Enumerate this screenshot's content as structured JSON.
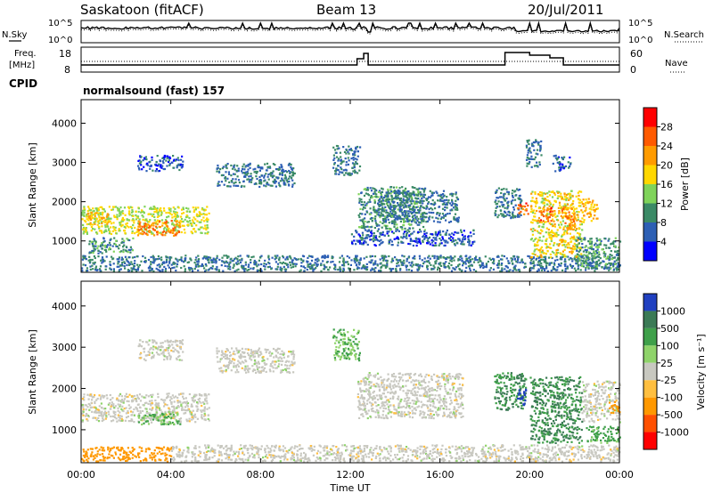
{
  "header": {
    "station": "Saskatoon (fitACF)",
    "beam": "Beam 13",
    "date": "20/Jul/2011"
  },
  "top_panels": {
    "nsky_label": "N.Sky",
    "nsky_ticks": [
      "10^5",
      "10^0"
    ],
    "nsearch_label": "N.Search",
    "nsearch_ticks": [
      "10^5",
      "10^0"
    ],
    "freq_label": "Freq.",
    "freq_unit": "[MHz]",
    "freq_ticks": [
      "18",
      "8"
    ],
    "nave_label": "Nave",
    "nave_ticks": [
      "60",
      "0"
    ],
    "cpid_label": "CPID",
    "cpid_text": "normalsound (fast) 157"
  },
  "colors": {
    "power_scale": [
      "#0000ff",
      "#2d5fb4",
      "#3b8a66",
      "#7fd35a",
      "#ffd700",
      "#ff9b00",
      "#ff5a00",
      "#ff0000"
    ],
    "velocity_scale": [
      "#2040c0",
      "#3b7a55",
      "#3fa04a",
      "#8fd36a",
      "#c8c8c0",
      "#ffbf40",
      "#ff9800",
      "#ff5000",
      "#ff0000"
    ]
  },
  "chart_data": [
    {
      "type": "heatmap",
      "name": "power",
      "xlabel": "",
      "ylabel": "Slant Range [km]",
      "x_ticks": [
        "00:00",
        "04:00",
        "08:00",
        "12:00",
        "16:00",
        "20:00",
        "00:00"
      ],
      "y_ticks": [
        1000,
        2000,
        3000,
        4000
      ],
      "ylim": [
        200,
        4600
      ],
      "colorbar_label": "Power [dB]",
      "colorbar_ticks": [
        "28",
        "24",
        "20",
        "16",
        "12",
        "8",
        "4"
      ],
      "colorbar_range": [
        0,
        32
      ],
      "regions": [
        {
          "t0": 0.0,
          "t1": 5.7,
          "r0": 1200,
          "r1": 1900,
          "level": 16
        },
        {
          "t0": 2.5,
          "t1": 4.4,
          "r0": 1150,
          "r1": 1550,
          "level": 24
        },
        {
          "t0": 0.0,
          "t1": 1.2,
          "r0": 1450,
          "r1": 1750,
          "level": 20
        },
        {
          "t0": 0.0,
          "t1": 24.0,
          "r0": 250,
          "r1": 650,
          "level": 8
        },
        {
          "t0": 0.3,
          "t1": 2.3,
          "r0": 700,
          "r1": 1100,
          "level": 10
        },
        {
          "t0": 2.5,
          "t1": 4.5,
          "r0": 2800,
          "r1": 3200,
          "level": 6
        },
        {
          "t0": 6.0,
          "t1": 9.5,
          "r0": 2400,
          "r1": 3000,
          "level": 8
        },
        {
          "t0": 11.2,
          "t1": 12.4,
          "r0": 2700,
          "r1": 3450,
          "level": 8
        },
        {
          "t0": 12.3,
          "t1": 15.3,
          "r0": 1300,
          "r1": 2400,
          "level": 10
        },
        {
          "t0": 13.2,
          "t1": 16.8,
          "r0": 1500,
          "r1": 2300,
          "level": 8
        },
        {
          "t0": 12.0,
          "t1": 17.5,
          "r0": 900,
          "r1": 1300,
          "level": 6
        },
        {
          "t0": 18.4,
          "t1": 19.6,
          "r0": 1600,
          "r1": 2400,
          "level": 8
        },
        {
          "t0": 19.4,
          "t1": 19.9,
          "r0": 1700,
          "r1": 2000,
          "level": 26
        },
        {
          "t0": 20.0,
          "t1": 22.3,
          "r0": 600,
          "r1": 2300,
          "level": 18
        },
        {
          "t0": 20.4,
          "t1": 21.0,
          "r0": 1500,
          "r1": 1900,
          "level": 26
        },
        {
          "t0": 21.4,
          "t1": 22.0,
          "r0": 1300,
          "r1": 1900,
          "level": 24
        },
        {
          "t0": 22.3,
          "t1": 23.0,
          "r0": 1500,
          "r1": 2100,
          "level": 20
        },
        {
          "t0": 22.0,
          "t1": 24.0,
          "r0": 300,
          "r1": 1100,
          "level": 10
        },
        {
          "t0": 19.8,
          "t1": 20.5,
          "r0": 2900,
          "r1": 3600,
          "level": 8
        },
        {
          "t0": 21.0,
          "t1": 21.8,
          "r0": 2800,
          "r1": 3200,
          "level": 6
        }
      ]
    },
    {
      "type": "heatmap",
      "name": "velocity",
      "xlabel": "Time UT",
      "ylabel": "Slant Range [km]",
      "x_ticks": [
        "00:00",
        "04:00",
        "08:00",
        "12:00",
        "16:00",
        "20:00",
        "00:00"
      ],
      "y_ticks": [
        1000,
        2000,
        3000,
        4000
      ],
      "ylim": [
        200,
        4600
      ],
      "colorbar_label": "Velocity [m s⁻¹]",
      "colorbar_ticks": [
        "1000",
        "500",
        "100",
        "25",
        "-25",
        "-100",
        "-500",
        "-1000"
      ],
      "regions": [
        {
          "t0": 0.0,
          "t1": 5.7,
          "r0": 1200,
          "r1": 1900,
          "v": 0
        },
        {
          "t0": 2.5,
          "t1": 4.4,
          "r0": 1150,
          "r1": 1450,
          "v": 60
        },
        {
          "t0": 0.0,
          "t1": 4.0,
          "r0": 250,
          "r1": 600,
          "v": -150
        },
        {
          "t0": 4.0,
          "t1": 24.0,
          "r0": 250,
          "r1": 650,
          "v": 0
        },
        {
          "t0": 2.5,
          "t1": 4.5,
          "r0": 2700,
          "r1": 3200,
          "v": 0
        },
        {
          "t0": 6.0,
          "t1": 9.5,
          "r0": 2400,
          "r1": 3000,
          "v": 0
        },
        {
          "t0": 11.2,
          "t1": 12.4,
          "r0": 2700,
          "r1": 3450,
          "v": 60
        },
        {
          "t0": 12.3,
          "t1": 17.0,
          "r0": 1300,
          "r1": 2400,
          "v": 0
        },
        {
          "t0": 18.4,
          "t1": 19.8,
          "r0": 1500,
          "r1": 2400,
          "v": 300
        },
        {
          "t0": 19.4,
          "t1": 19.8,
          "r0": 1600,
          "r1": 2000,
          "v": 900
        },
        {
          "t0": 20.0,
          "t1": 22.3,
          "r0": 700,
          "r1": 2300,
          "v": 300
        },
        {
          "t0": 22.3,
          "t1": 24.0,
          "r0": 1200,
          "r1": 2200,
          "v": 0
        },
        {
          "t0": 22.5,
          "t1": 24.0,
          "r0": 700,
          "r1": 1100,
          "v": 80
        },
        {
          "t0": 23.5,
          "t1": 24.0,
          "r0": 1400,
          "r1": 1700,
          "v": -200
        }
      ]
    }
  ]
}
